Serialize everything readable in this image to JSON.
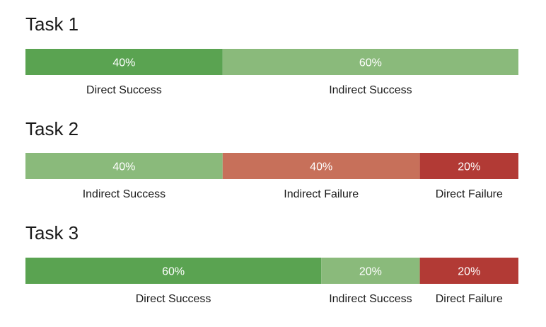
{
  "chart_data": {
    "type": "bar",
    "stacked": true,
    "orientation": "horizontal",
    "value_format": "percent",
    "colors": {
      "Direct Success": "#5aa351",
      "Indirect Success": "#8aba7b",
      "Indirect Failure": "#c7705a",
      "Direct Failure": "#b23a35"
    },
    "tasks": [
      {
        "title": "Task 1",
        "segments": [
          {
            "label": "Direct Success",
            "value": 40,
            "value_label": "40%"
          },
          {
            "label": "Indirect Success",
            "value": 60,
            "value_label": "60%"
          }
        ]
      },
      {
        "title": "Task 2",
        "segments": [
          {
            "label": "Indirect Success",
            "value": 40,
            "value_label": "40%"
          },
          {
            "label": "Indirect Failure",
            "value": 40,
            "value_label": "40%"
          },
          {
            "label": "Direct Failure",
            "value": 20,
            "value_label": "20%"
          }
        ]
      },
      {
        "title": "Task 3",
        "segments": [
          {
            "label": "Direct Success",
            "value": 60,
            "value_label": "60%"
          },
          {
            "label": "Indirect Success",
            "value": 20,
            "value_label": "20%"
          },
          {
            "label": "Direct Failure",
            "value": 20,
            "value_label": "20%"
          }
        ]
      }
    ]
  }
}
